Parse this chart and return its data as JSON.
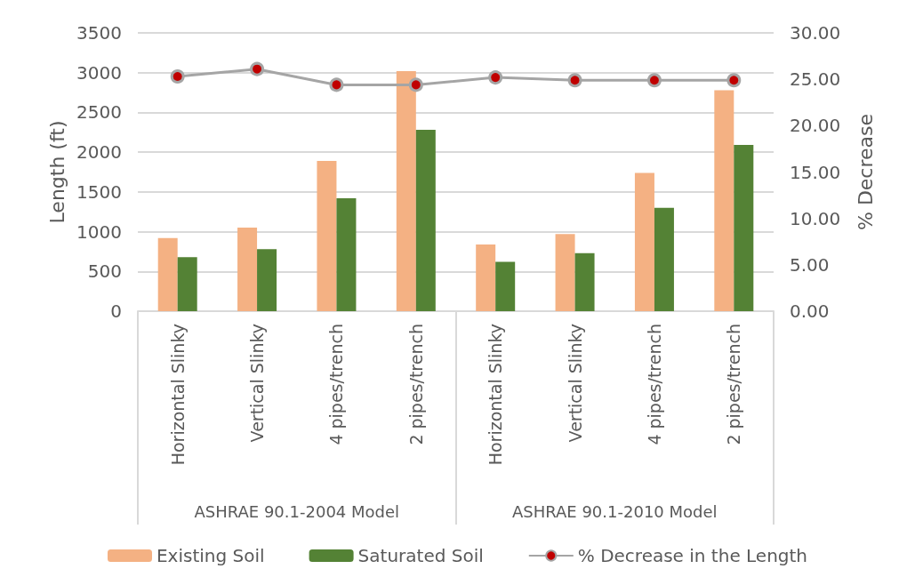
{
  "chart_data": {
    "type": "bar",
    "categories": [
      "Horizontal Slinky",
      "Vertical Slinky",
      "4 pipes/trench",
      "2 pipes/trench",
      "Horizontal Slinky",
      "Vertical Slinky",
      "4 pipes/trench",
      "2 pipes/trench"
    ],
    "series": [
      {
        "name": "Existing Soil",
        "color": "#f4b183",
        "values": [
          920,
          1050,
          1890,
          3020,
          840,
          970,
          1740,
          2780
        ]
      },
      {
        "name": "Saturated Soil",
        "color": "#548235",
        "values": [
          680,
          780,
          1420,
          2280,
          620,
          730,
          1300,
          2090
        ]
      },
      {
        "name": "% Decrease in the Length",
        "type": "line",
        "axis": "y2",
        "color": "#a5a5a5",
        "marker": "circle",
        "values": [
          25.3,
          26.1,
          24.4,
          24.4,
          25.2,
          24.9,
          24.9,
          24.9
        ]
      }
    ],
    "ylabel": "Length (ft)",
    "y2label": "% Decrease",
    "ylim": [
      0,
      3500
    ],
    "yticks": [
      0,
      500,
      1000,
      1500,
      2000,
      2500,
      3000,
      3500
    ],
    "y2lim": [
      0,
      30
    ],
    "y2ticks": [
      {
        "value": 0,
        "label": "0.00"
      },
      {
        "value": 5,
        "label": "5.00"
      },
      {
        "value": 10,
        "label": "10.00"
      },
      {
        "value": 15,
        "label": "15.00"
      },
      {
        "value": 20,
        "label": "20.00"
      },
      {
        "value": 25,
        "label": "25.00"
      },
      {
        "value": 30,
        "label": "30.00"
      }
    ],
    "annotations": [
      "ASHRAE 90.1-2004 Model",
      "ASHRAE 90.1-2010 Model"
    ],
    "grid": "y",
    "legend": "bottom"
  }
}
